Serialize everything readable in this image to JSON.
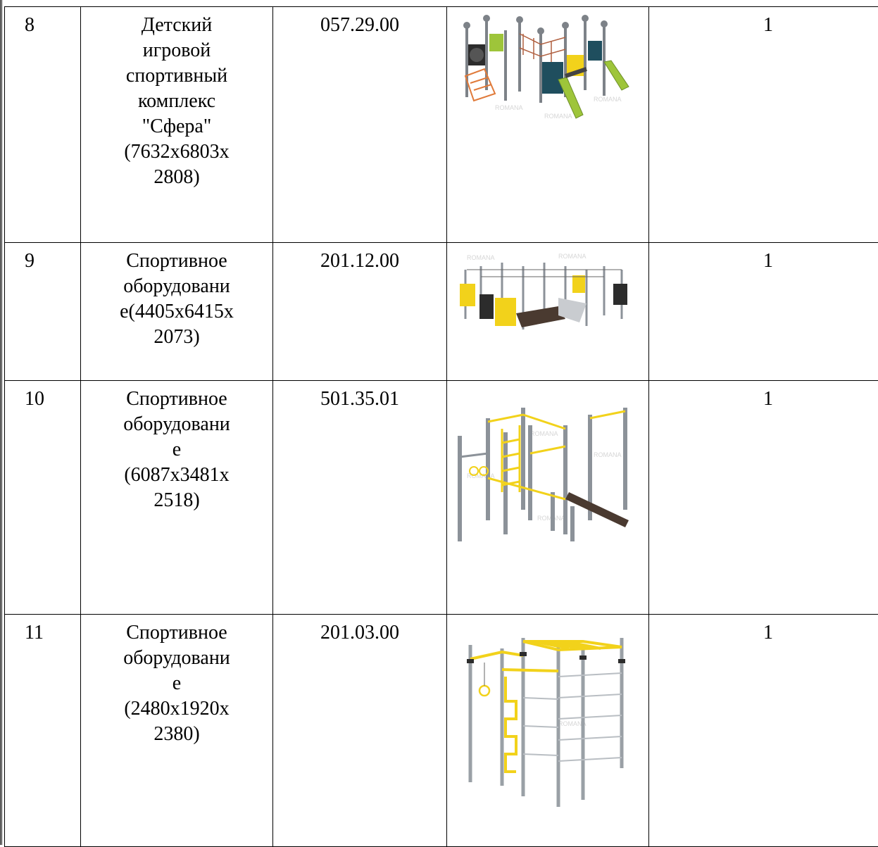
{
  "rows": [
    {
      "num": "8",
      "name": "Детский\nигровой\nспортивный\nкомплекс\n\"Сфера\"\n(7632x6803x\n2808)",
      "code": "057.29.00",
      "qty": "1",
      "image": "playground-complex-sfera",
      "watermark": "ROMANA"
    },
    {
      "num": "9",
      "name": "Спортивное\nоборудовани\nе(4405x6415x\n2073)",
      "code": "201.12.00",
      "qty": "1",
      "image": "sports-equipment-platform",
      "watermark": "ROMANA"
    },
    {
      "num": "10",
      "name": "Спортивное\nоборудовани\nе\n(6087x3481x\n2518)",
      "code": "501.35.01",
      "qty": "1",
      "image": "workout-bars-ladder",
      "watermark": "ROMANA"
    },
    {
      "num": "11",
      "name": "Спортивное\nоборудовани\nе\n(2480x1920x\n2380)",
      "code": "201.03.00",
      "qty": "1",
      "image": "monkey-bars-frame",
      "watermark": "ROMANA"
    }
  ],
  "colors": {
    "yellow": "#f2d21b",
    "steel": "#8c9299",
    "dark": "#2c2c2c",
    "teal": "#1f4e5e",
    "green": "#9ec53a",
    "orange": "#e07a3a"
  }
}
